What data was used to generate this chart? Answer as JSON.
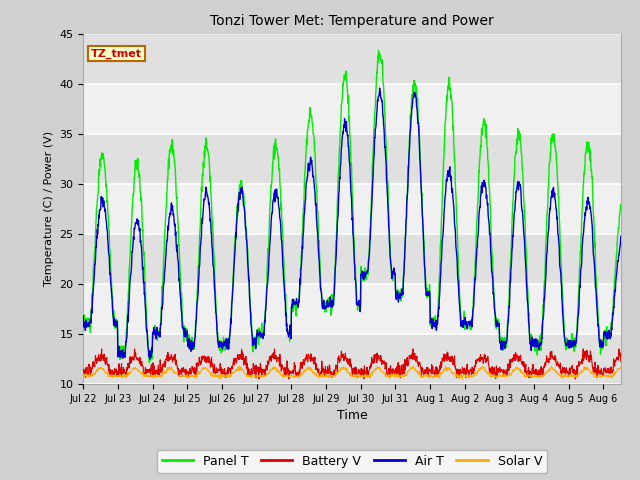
{
  "title": "Tonzi Tower Met: Temperature and Power",
  "xlabel": "Time",
  "ylabel": "Temperature (C) / Power (V)",
  "ylim": [
    10,
    45
  ],
  "fig_bg_color": "#d0d0d0",
  "plot_bg_color": "#e8e8e8",
  "plot_bg_color2": "#f5f5f5",
  "annotation_text": "TZ_tmet",
  "annotation_bg": "#ffffcc",
  "annotation_border": "#bb6600",
  "x_tick_labels": [
    "Jul 22",
    "Jul 23",
    "Jul 24",
    "Jul 25",
    "Jul 26",
    "Jul 27",
    "Jul 28",
    "Jul 29",
    "Jul 30",
    "Jul 31",
    "Aug 1",
    "Aug 2",
    "Aug 3",
    "Aug 4",
    "Aug 5",
    "Aug 6"
  ],
  "colors": {
    "panel_t": "#00ee00",
    "battery_v": "#dd0000",
    "air_t": "#0000cc",
    "solar_v": "#ffaa00"
  },
  "legend_labels": [
    "Panel T",
    "Battery V",
    "Air T",
    "Solar V"
  ],
  "num_days": 15.5,
  "points_per_day": 96
}
